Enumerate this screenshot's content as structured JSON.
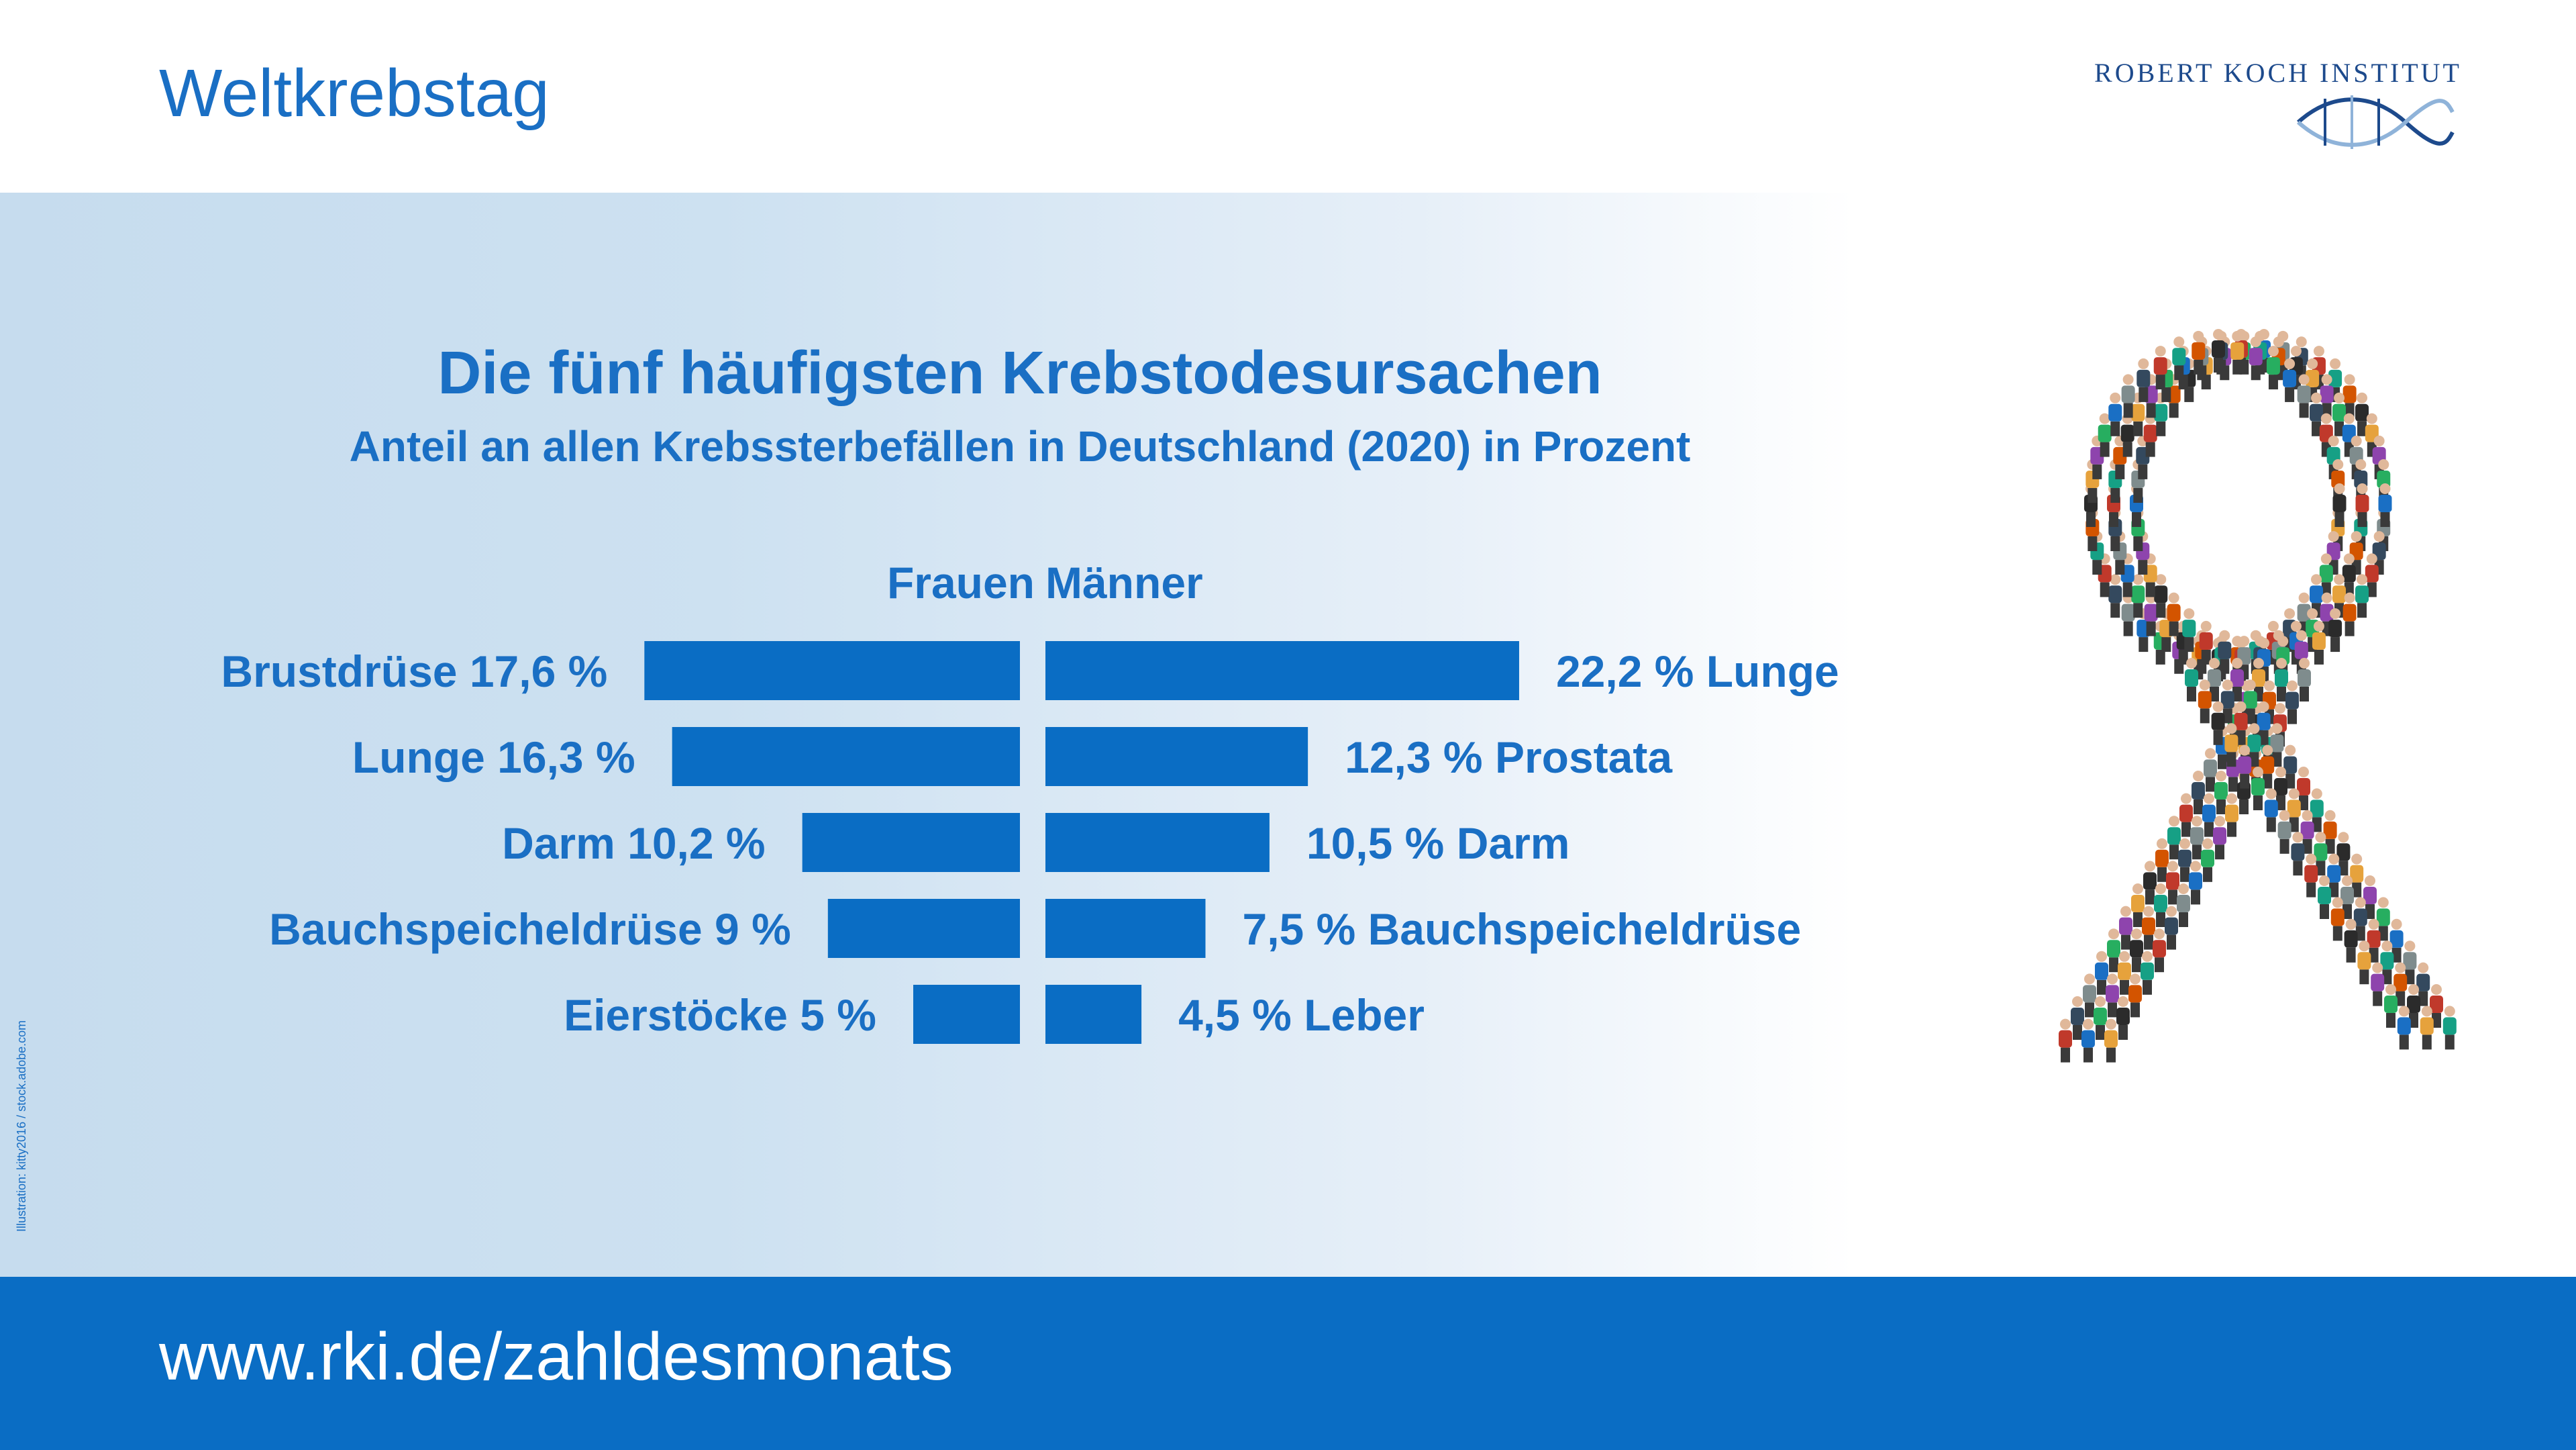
{
  "header": {
    "title": "Weltkrebstag"
  },
  "logo": {
    "text": "ROBERT KOCH INSTITUT"
  },
  "credit": {
    "text": "Illustration: kitty2016 / stock.adobe.com"
  },
  "column_labels": {
    "female": "Frauen",
    "male": "Männer"
  },
  "footer": {
    "url": "www.rki.de/zahldesmonats"
  },
  "colors": {
    "accent": "#1a6fc4",
    "bar": "#0a6dc4",
    "footer": "#0a6dc4"
  },
  "chart_data": {
    "type": "bar",
    "title": "Die fünf häufigsten Krebstodesursachen",
    "subtitle": "Anteil an allen Krebssterbefällen in Deutschland (2020) in Prozent",
    "orientation": "horizontal",
    "series": [
      {
        "name": "Frauen",
        "categories": [
          "Brustdrüse",
          "Lunge",
          "Darm",
          "Bauchspeicheldrüse",
          "Eierstöcke"
        ],
        "values": [
          17.6,
          16.3,
          10.2,
          9,
          5
        ],
        "labels": [
          "Brustdrüse 17,6 %",
          "Lunge 16,3 %",
          "Darm 10,2 %",
          "Bauchspeicheldrüse 9 %",
          "Eierstöcke 5 %"
        ]
      },
      {
        "name": "Männer",
        "categories": [
          "Lunge",
          "Prostata",
          "Darm",
          "Bauchspeicheldrüse",
          "Leber"
        ],
        "values": [
          22.2,
          12.3,
          10.5,
          7.5,
          4.5
        ],
        "labels": [
          "22,2 % Lunge",
          "12,3 % Prostata",
          "10,5 % Darm",
          "7,5 % Bauchspeicheldrüse",
          "4,5 % Leber"
        ]
      }
    ]
  }
}
